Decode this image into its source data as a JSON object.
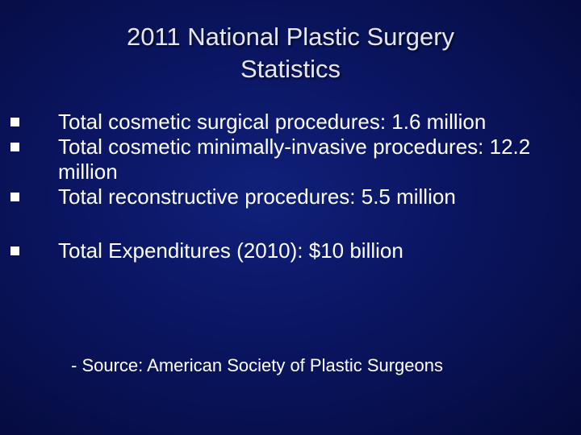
{
  "slide": {
    "title_line1": "2011 National Plastic Surgery",
    "title_line2": "Statistics",
    "bullets": [
      "Total cosmetic surgical procedures: 1.6 million",
      "Total cosmetic minimally-invasive procedures: 12.2 million",
      "Total reconstructive procedures: 5.5 million",
      "Total Expenditures (2010): $10 billion"
    ],
    "source": "- Source: American Society of Plastic Surgeons"
  },
  "colors": {
    "background": "#0a1560",
    "text": "#ffffff",
    "title": "#e6e6ee"
  }
}
